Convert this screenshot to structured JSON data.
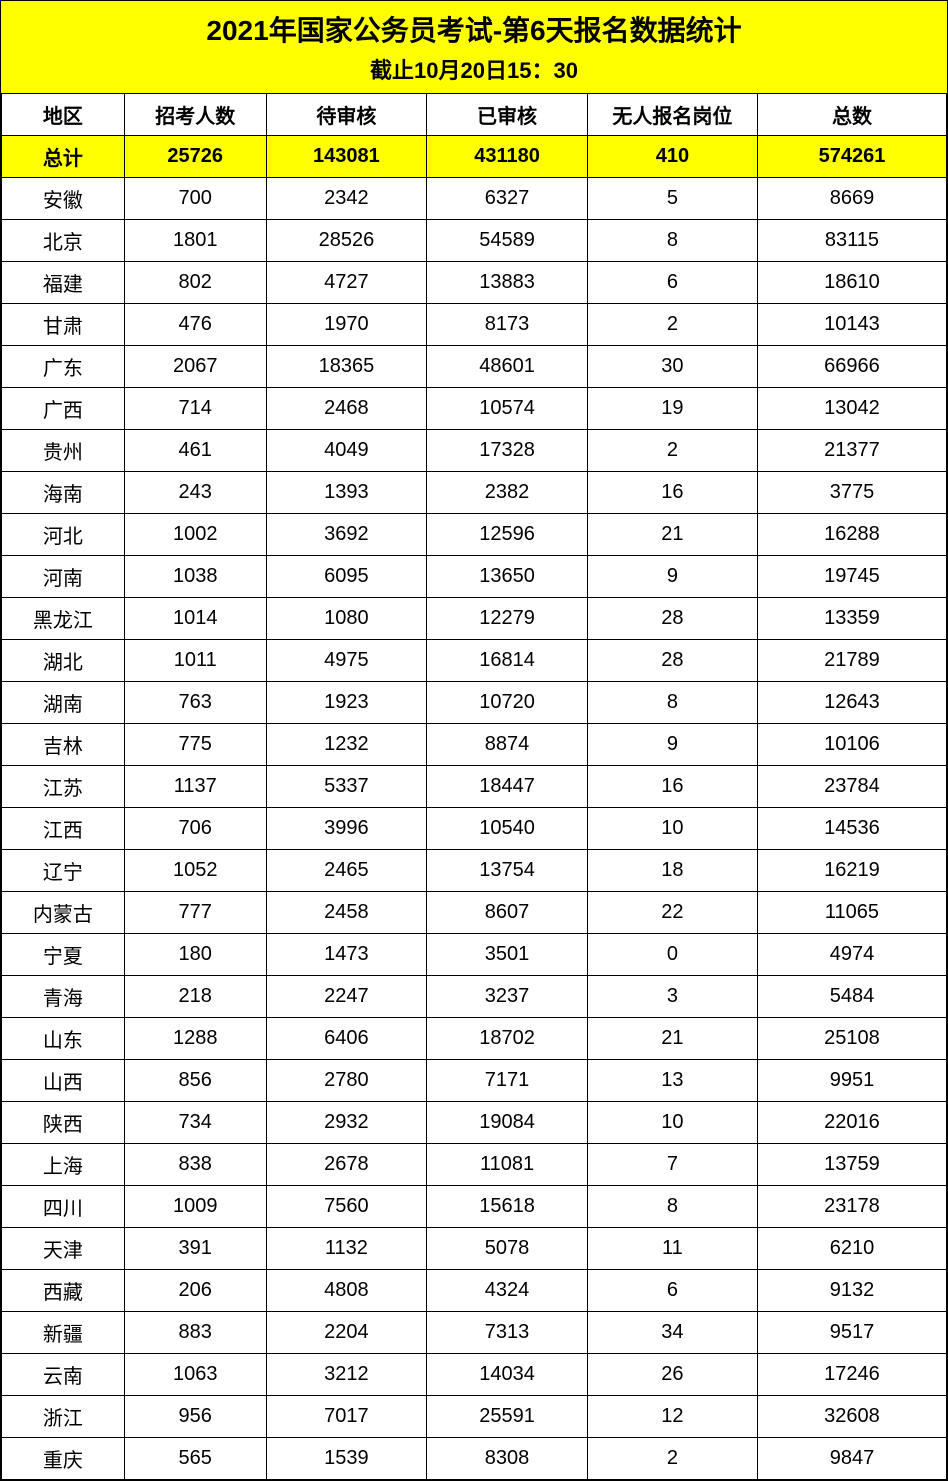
{
  "header": {
    "title": "2021年国家公务员考试-第6天报名数据统计",
    "subtitle": "截止10月20日15：30",
    "background_color": "#ffff00",
    "title_fontsize": 28,
    "subtitle_fontsize": 22
  },
  "table": {
    "columns": [
      "地区",
      "招考人数",
      "待审核",
      "已审核",
      "无人报名岗位",
      "总数"
    ],
    "totals_label": "总计",
    "totals": [
      "25726",
      "143081",
      "431180",
      "410",
      "574261"
    ],
    "totals_background": "#ffff00",
    "border_color": "#000000",
    "cell_fontsize": 20,
    "rows": [
      [
        "安徽",
        "700",
        "2342",
        "6327",
        "5",
        "8669"
      ],
      [
        "北京",
        "1801",
        "28526",
        "54589",
        "8",
        "83115"
      ],
      [
        "福建",
        "802",
        "4727",
        "13883",
        "6",
        "18610"
      ],
      [
        "甘肃",
        "476",
        "1970",
        "8173",
        "2",
        "10143"
      ],
      [
        "广东",
        "2067",
        "18365",
        "48601",
        "30",
        "66966"
      ],
      [
        "广西",
        "714",
        "2468",
        "10574",
        "19",
        "13042"
      ],
      [
        "贵州",
        "461",
        "4049",
        "17328",
        "2",
        "21377"
      ],
      [
        "海南",
        "243",
        "1393",
        "2382",
        "16",
        "3775"
      ],
      [
        "河北",
        "1002",
        "3692",
        "12596",
        "21",
        "16288"
      ],
      [
        "河南",
        "1038",
        "6095",
        "13650",
        "9",
        "19745"
      ],
      [
        "黑龙江",
        "1014",
        "1080",
        "12279",
        "28",
        "13359"
      ],
      [
        "湖北",
        "1011",
        "4975",
        "16814",
        "28",
        "21789"
      ],
      [
        "湖南",
        "763",
        "1923",
        "10720",
        "8",
        "12643"
      ],
      [
        "吉林",
        "775",
        "1232",
        "8874",
        "9",
        "10106"
      ],
      [
        "江苏",
        "1137",
        "5337",
        "18447",
        "16",
        "23784"
      ],
      [
        "江西",
        "706",
        "3996",
        "10540",
        "10",
        "14536"
      ],
      [
        "辽宁",
        "1052",
        "2465",
        "13754",
        "18",
        "16219"
      ],
      [
        "内蒙古",
        "777",
        "2458",
        "8607",
        "22",
        "11065"
      ],
      [
        "宁夏",
        "180",
        "1473",
        "3501",
        "0",
        "4974"
      ],
      [
        "青海",
        "218",
        "2247",
        "3237",
        "3",
        "5484"
      ],
      [
        "山东",
        "1288",
        "6406",
        "18702",
        "21",
        "25108"
      ],
      [
        "山西",
        "856",
        "2780",
        "7171",
        "13",
        "9951"
      ],
      [
        "陕西",
        "734",
        "2932",
        "19084",
        "10",
        "22016"
      ],
      [
        "上海",
        "838",
        "2678",
        "11081",
        "7",
        "13759"
      ],
      [
        "四川",
        "1009",
        "7560",
        "15618",
        "8",
        "23178"
      ],
      [
        "天津",
        "391",
        "1132",
        "5078",
        "11",
        "6210"
      ],
      [
        "西藏",
        "206",
        "4808",
        "4324",
        "6",
        "9132"
      ],
      [
        "新疆",
        "883",
        "2204",
        "7313",
        "34",
        "9517"
      ],
      [
        "云南",
        "1063",
        "3212",
        "14034",
        "26",
        "17246"
      ],
      [
        "浙江",
        "956",
        "7017",
        "25591",
        "12",
        "32608"
      ],
      [
        "重庆",
        "565",
        "1539",
        "8308",
        "2",
        "9847"
      ]
    ]
  }
}
